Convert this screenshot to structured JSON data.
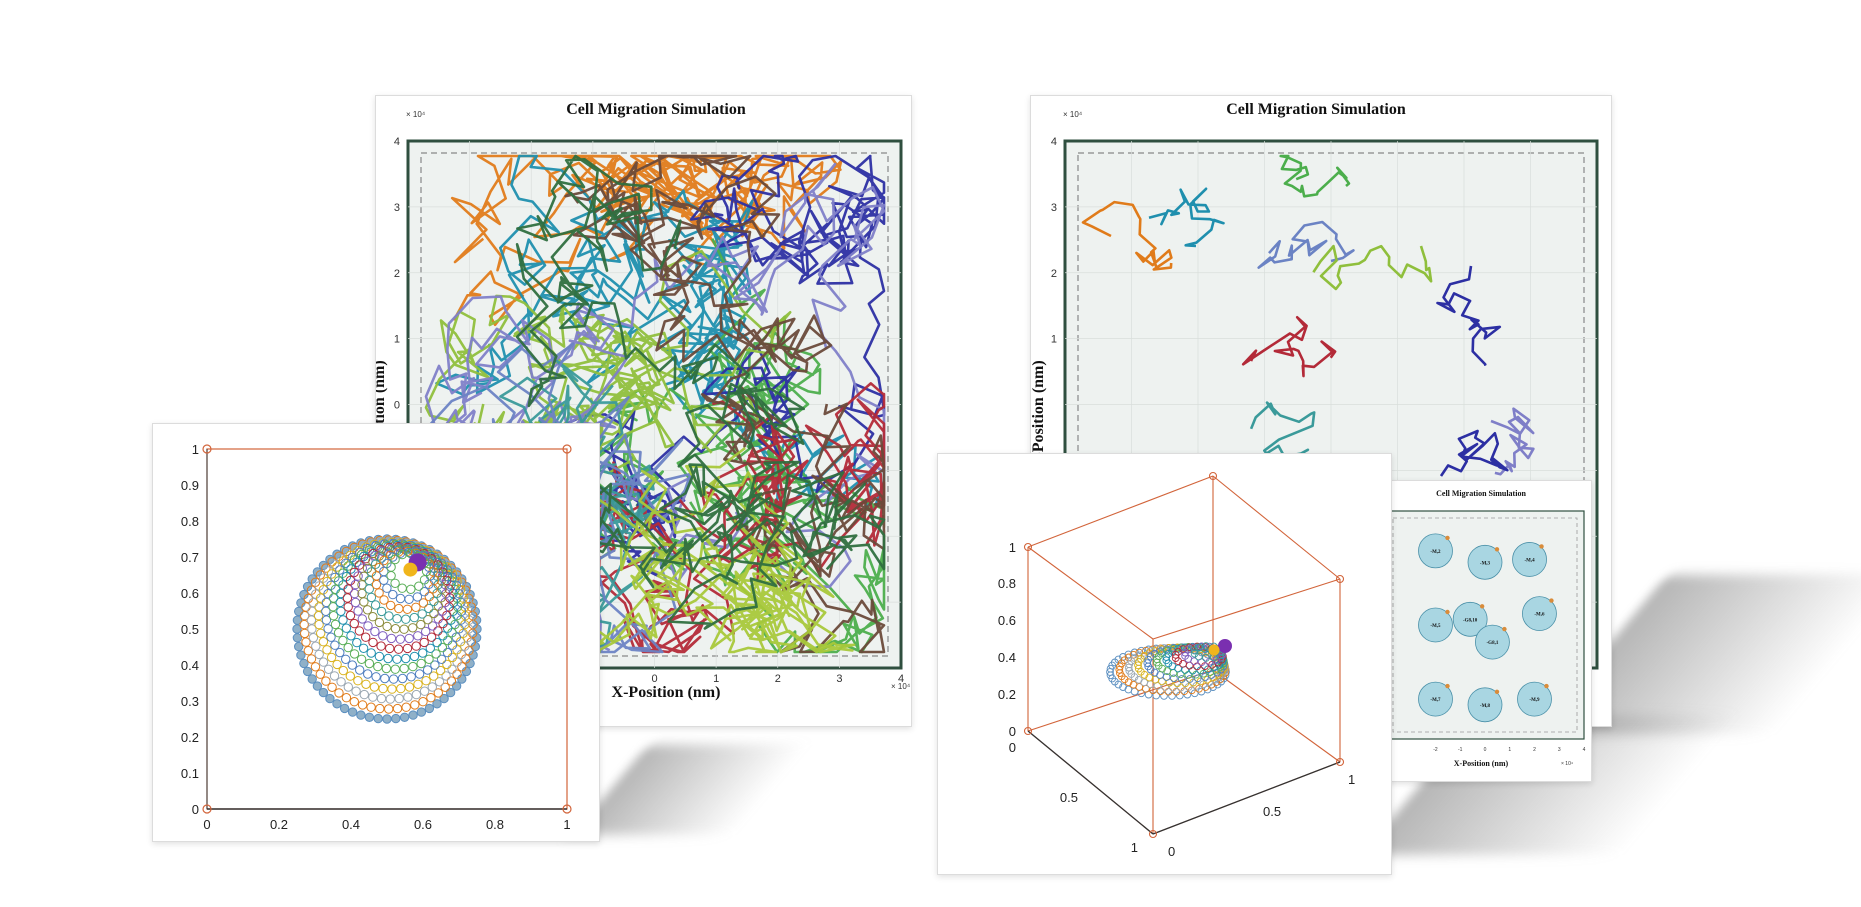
{
  "colors": {
    "frame": "#2f4f3f",
    "plot_bg": "#eef2f0",
    "box_edge": "#d2643a",
    "cell_fill": "#a9d6e2",
    "palette": [
      "#e07b1a",
      "#1f8fae",
      "#4cae4c",
      "#2c2fa3",
      "#8fbf3c",
      "#7f7fc8",
      "#b32a38",
      "#6a4a3a",
      "#3a9a9a",
      "#6b83c4",
      "#a8c83a",
      "#2f6f3f"
    ]
  },
  "chart_data": [
    {
      "type": "line",
      "title": "Cell Migration Simulation",
      "xlabel": "X-Position (nm)",
      "ylabel": "Y-Position (nm)",
      "x_exponent": "× 10⁴",
      "y_exponent": "× 10⁴",
      "x_ticks": [
        "0",
        "1",
        "2",
        "3",
        "4"
      ],
      "y_ticks": [
        "0",
        "1",
        "2",
        "3",
        "4"
      ],
      "xlim": [
        -4,
        4
      ],
      "ylim": [
        -4,
        4
      ],
      "grid": true,
      "description_of_series": "dense random-walk trajectories of many cells filling the square domain",
      "series_count": 12
    },
    {
      "type": "line",
      "title": "Cell Migration Simulation",
      "xlabel": "",
      "ylabel": "Y-Position (nm)",
      "y_exponent": "× 10⁴",
      "y_ticks": [
        "1",
        "2",
        "3",
        "4"
      ],
      "xlim": [
        -4,
        4
      ],
      "ylim": [
        -4,
        4
      ],
      "grid": true,
      "series_count": 11
    },
    {
      "type": "scatter",
      "title": "",
      "x_ticks": [
        "0",
        "0.2",
        "0.4",
        "0.6",
        "0.8",
        "1"
      ],
      "y_ticks": [
        "0",
        "0.1",
        "0.2",
        "0.3",
        "0.4",
        "0.5",
        "0.6",
        "0.7",
        "0.8",
        "0.9",
        "1"
      ],
      "xlim": [
        0,
        1
      ],
      "ylim": [
        0,
        1
      ],
      "rings": [
        {
          "cx": 0.5,
          "cy": 0.5,
          "r": 0.25
        },
        {
          "cx": 0.5,
          "cy": 0.53,
          "r": 0.21
        },
        {
          "cx": 0.5,
          "cy": 0.56,
          "r": 0.17
        },
        {
          "cx": 0.52,
          "cy": 0.6,
          "r": 0.13
        },
        {
          "cx": 0.54,
          "cy": 0.63,
          "r": 0.09
        },
        {
          "cx": 0.56,
          "cy": 0.66,
          "r": 0.05
        }
      ]
    },
    {
      "type": "scatter",
      "title": "",
      "view": "3d",
      "z_ticks": [
        "0",
        "0.2",
        "0.4",
        "0.6",
        "0.8",
        "1"
      ],
      "x_ticks": [
        "0",
        "0.5",
        "1"
      ],
      "y_ticks": [
        "0",
        "0.5",
        "1"
      ]
    },
    {
      "type": "scatter",
      "title": "Cell Migration Simulation",
      "xlabel": "X-Position (nm)",
      "x_exponent": "× 10⁴",
      "x_ticks": [
        "-2",
        "-1",
        "0",
        "1",
        "2",
        "3",
        "4"
      ],
      "cells": [
        {
          "label": "-M,2",
          "x": -2.0,
          "y": 2.6
        },
        {
          "label": "-M,3",
          "x": 0.0,
          "y": 2.2
        },
        {
          "label": "-M,4",
          "x": 1.8,
          "y": 2.3
        },
        {
          "label": "-M,5",
          "x": -2.0,
          "y": 0.0
        },
        {
          "label": "-G8,10",
          "x": -0.6,
          "y": 0.2
        },
        {
          "label": "-G8,1",
          "x": 0.3,
          "y": -0.6
        },
        {
          "label": "-M,6",
          "x": 2.2,
          "y": 0.4
        },
        {
          "label": "-M,7",
          "x": -2.0,
          "y": -2.6
        },
        {
          "label": "-M,8",
          "x": 0.0,
          "y": -2.8
        },
        {
          "label": "-M,9",
          "x": 2.0,
          "y": -2.6
        }
      ]
    }
  ]
}
